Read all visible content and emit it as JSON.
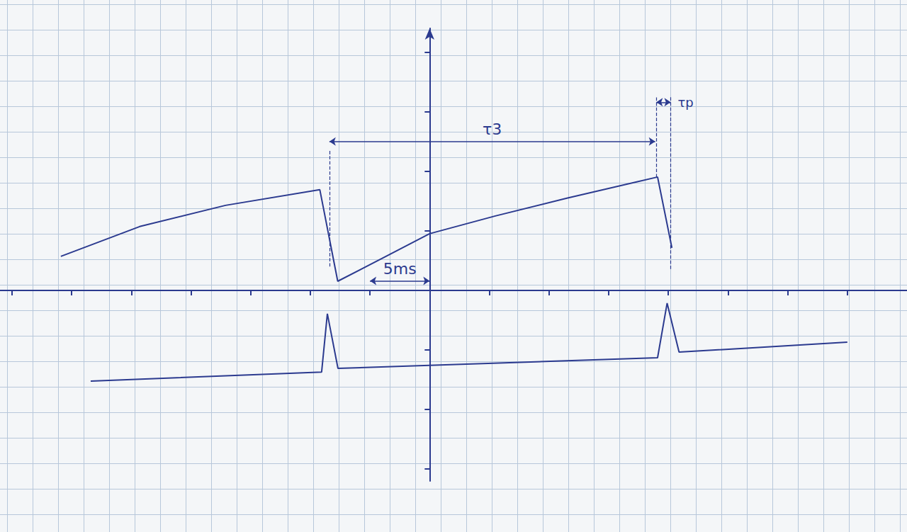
{
  "chart_data": {
    "type": "line",
    "series": [
      {
        "color": "#2b3a8f",
        "x": [
          -30.9,
          -24.3,
          -17.1,
          -9.2,
          -7.7,
          -4.0,
          0,
          5.5,
          11.5,
          19.1,
          20.3
        ],
        "values": [
          2.86,
          5.36,
          7.14,
          8.45,
          0.77,
          2.68,
          4.76,
          6.25,
          7.74,
          9.52,
          3.57
        ]
      },
      {
        "color": "#2b3a8f",
        "x": [
          -28.4,
          -9.05,
          -8.57,
          -7.68,
          19.1,
          19.9,
          20.9,
          35.0
        ],
        "values": [
          -7.62,
          -6.85,
          -1.96,
          -6.55,
          -5.65,
          -1.07,
          -5.18,
          -4.35
        ]
      }
    ],
    "xlim": [
      -36,
      40
    ],
    "xticks": [
      -35,
      -30,
      -25,
      -20,
      -15,
      -10,
      -5,
      0,
      5,
      10,
      15,
      20,
      25,
      30,
      35
    ],
    "ylim": [
      -16,
      22
    ],
    "yticks": [
      -15,
      -10,
      -5,
      0,
      5,
      10,
      15,
      20
    ],
    "tick_labels": false,
    "annotations": [
      {
        "text": "τ3",
        "x": [
          -8.4,
          18.9
        ],
        "y": 12.5
      },
      {
        "text": "τp",
        "x": [
          19.0,
          20.2
        ],
        "y": 15.8
      },
      {
        "text": "5ms",
        "x": [
          -5,
          0
        ],
        "y": 0.8
      }
    ],
    "guides": [
      {
        "x": -8.4,
        "y": [
          2.0,
          11.8
        ]
      },
      {
        "x": 19.0,
        "y": [
          9.5,
          16.3
        ]
      },
      {
        "x": 20.2,
        "y": [
          1.8,
          16.3
        ]
      }
    ]
  }
}
